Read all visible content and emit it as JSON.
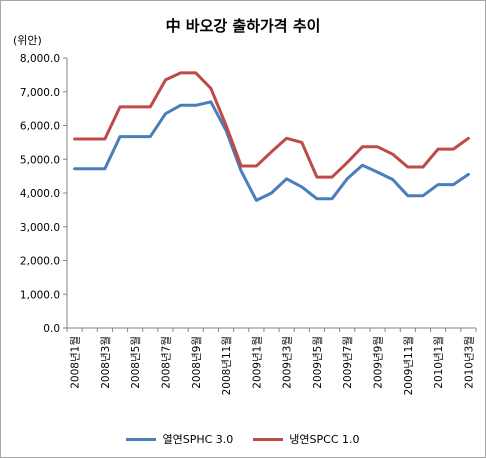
{
  "chart_data": {
    "type": "line",
    "title": "中 바오강 출하가격 추이",
    "unit_label": "(위안)",
    "categories": [
      "2008년1월",
      "2008년2월",
      "2008년3월",
      "2008년4월",
      "2008년5월",
      "2008년6월",
      "2008년7월",
      "2008년8월",
      "2008년9월",
      "2008년10월",
      "2008년11월",
      "2008년12월",
      "2009년1월",
      "2009년2월",
      "2009년3월",
      "2009년4월",
      "2009년5월",
      "2009년6월",
      "2009년7월",
      "2009년8월",
      "2009년9월",
      "2009년10월",
      "2009년11월",
      "2009년12월",
      "2010년1월",
      "2010년2월",
      "2010년3월"
    ],
    "shown_tick_labels": [
      "2008년1월",
      "2008년3월",
      "2008년5월",
      "2008년7월",
      "2008년9월",
      "2008년11월",
      "2009년1월",
      "2009년3월",
      "2009년5월",
      "2009년7월",
      "2009년9월",
      "2009년11월",
      "2010년1월",
      "2010년3월"
    ],
    "series": [
      {
        "name": "열연SPHC 3.0",
        "color": "#4a7ebb",
        "values": [
          4720,
          4720,
          4720,
          5670,
          5670,
          5670,
          6350,
          6600,
          6600,
          6700,
          5850,
          4650,
          3780,
          4000,
          4420,
          4180,
          3830,
          3830,
          4420,
          4820,
          4620,
          4400,
          3920,
          3920,
          4250,
          4250,
          4550
        ]
      },
      {
        "name": "냉연SPCC 1.0",
        "color": "#be4b48",
        "values": [
          5600,
          5600,
          5600,
          6550,
          6550,
          6550,
          7350,
          7560,
          7560,
          7100,
          6000,
          4800,
          4800,
          5220,
          5620,
          5500,
          4470,
          4470,
          4900,
          5370,
          5370,
          5150,
          4770,
          4770,
          5300,
          5300,
          5620
        ]
      }
    ],
    "yticks": [
      "0.0",
      "1,000.0",
      "2,000.0",
      "3,000.0",
      "4,000.0",
      "5,000.0",
      "6,000.0",
      "7,000.0",
      "8,000.0"
    ],
    "ylim": [
      0,
      8000
    ],
    "grid": false,
    "legend_position": "bottom",
    "axis_color": "#868686"
  }
}
